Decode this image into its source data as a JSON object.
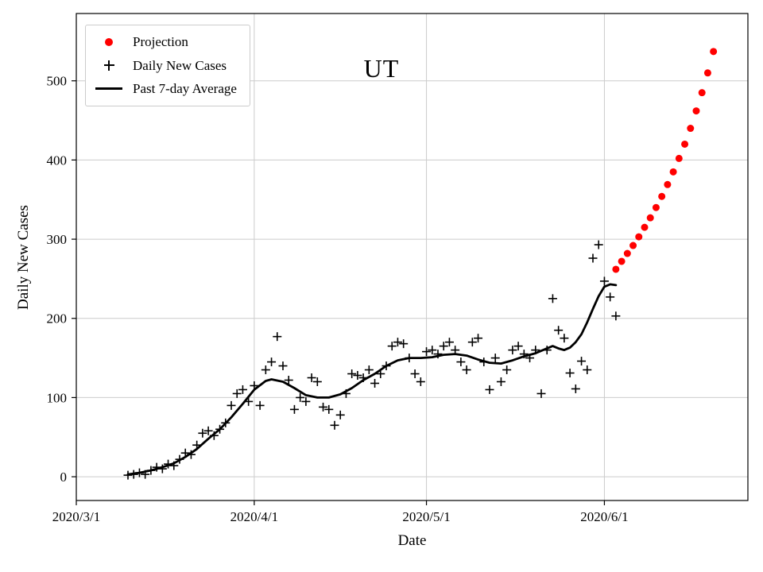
{
  "chart_data": {
    "type": "line",
    "title": "UT",
    "xlabel": "Date",
    "ylabel": "Daily New Cases",
    "x_unit": "days since 2020/3/1",
    "xlim": [
      0,
      117
    ],
    "ylim": [
      -30,
      585
    ],
    "grid": true,
    "legend_position": "upper-left",
    "colors": {
      "projection": "#ff0000",
      "daily": "#000000",
      "average": "#000000",
      "grid": "#cccccc",
      "spine": "#000000"
    },
    "x_ticks": [
      {
        "x": 0,
        "label": "2020/3/1"
      },
      {
        "x": 31,
        "label": "2020/4/1"
      },
      {
        "x": 61,
        "label": "2020/5/1"
      },
      {
        "x": 92,
        "label": "2020/6/1"
      }
    ],
    "y_ticks": [
      {
        "y": 0,
        "label": "0"
      },
      {
        "y": 100,
        "label": "100"
      },
      {
        "y": 200,
        "label": "200"
      },
      {
        "y": 300,
        "label": "300"
      },
      {
        "y": 400,
        "label": "400"
      },
      {
        "y": 500,
        "label": "500"
      }
    ],
    "series": {
      "projection": {
        "name": "Projection",
        "marker": "red-dot",
        "points": [
          [
            94,
            262
          ],
          [
            95,
            272
          ],
          [
            96,
            282
          ],
          [
            97,
            292
          ],
          [
            98,
            303
          ],
          [
            99,
            315
          ],
          [
            100,
            327
          ],
          [
            101,
            340
          ],
          [
            102,
            354
          ],
          [
            103,
            369
          ],
          [
            104,
            385
          ],
          [
            105,
            402
          ],
          [
            106,
            420
          ],
          [
            107,
            440
          ],
          [
            108,
            462
          ],
          [
            109,
            485
          ],
          [
            110,
            510
          ],
          [
            111,
            537
          ]
        ]
      },
      "daily": {
        "name": "Daily New Cases",
        "marker": "black-plus",
        "points": [
          [
            9,
            2
          ],
          [
            10,
            3
          ],
          [
            11,
            5
          ],
          [
            12,
            3
          ],
          [
            13,
            8
          ],
          [
            14,
            12
          ],
          [
            15,
            10
          ],
          [
            16,
            16
          ],
          [
            17,
            14
          ],
          [
            18,
            22
          ],
          [
            19,
            30
          ],
          [
            20,
            28
          ],
          [
            21,
            40
          ],
          [
            22,
            55
          ],
          [
            23,
            58
          ],
          [
            24,
            52
          ],
          [
            25,
            60
          ],
          [
            26,
            68
          ],
          [
            27,
            90
          ],
          [
            28,
            105
          ],
          [
            29,
            110
          ],
          [
            30,
            95
          ],
          [
            31,
            115
          ],
          [
            32,
            90
          ],
          [
            33,
            135
          ],
          [
            34,
            145
          ],
          [
            35,
            177
          ],
          [
            36,
            140
          ],
          [
            37,
            122
          ],
          [
            38,
            85
          ],
          [
            39,
            100
          ],
          [
            40,
            95
          ],
          [
            41,
            125
          ],
          [
            42,
            120
          ],
          [
            43,
            88
          ],
          [
            44,
            85
          ],
          [
            45,
            65
          ],
          [
            46,
            78
          ],
          [
            47,
            105
          ],
          [
            48,
            130
          ],
          [
            49,
            128
          ],
          [
            50,
            125
          ],
          [
            51,
            135
          ],
          [
            52,
            118
          ],
          [
            53,
            130
          ],
          [
            54,
            140
          ],
          [
            55,
            165
          ],
          [
            56,
            170
          ],
          [
            57,
            168
          ],
          [
            58,
            150
          ],
          [
            59,
            130
          ],
          [
            60,
            120
          ],
          [
            61,
            158
          ],
          [
            62,
            160
          ],
          [
            63,
            155
          ],
          [
            64,
            165
          ],
          [
            65,
            170
          ],
          [
            66,
            160
          ],
          [
            67,
            145
          ],
          [
            68,
            135
          ],
          [
            69,
            170
          ],
          [
            70,
            175
          ],
          [
            71,
            145
          ],
          [
            72,
            110
          ],
          [
            73,
            150
          ],
          [
            74,
            120
          ],
          [
            75,
            135
          ],
          [
            76,
            160
          ],
          [
            77,
            165
          ],
          [
            78,
            155
          ],
          [
            79,
            150
          ],
          [
            80,
            160
          ],
          [
            81,
            105
          ],
          [
            82,
            160
          ],
          [
            83,
            225
          ],
          [
            84,
            185
          ],
          [
            85,
            175
          ],
          [
            86,
            131
          ],
          [
            87,
            111
          ],
          [
            88,
            146
          ],
          [
            89,
            135
          ],
          [
            90,
            276
          ],
          [
            91,
            293
          ],
          [
            92,
            247
          ],
          [
            93,
            227
          ],
          [
            94,
            203
          ]
        ]
      },
      "average": {
        "name": "Past 7-day Average",
        "marker": "black-line",
        "points": [
          [
            9,
            3
          ],
          [
            11,
            5
          ],
          [
            13,
            8
          ],
          [
            15,
            12
          ],
          [
            17,
            17
          ],
          [
            19,
            25
          ],
          [
            21,
            35
          ],
          [
            23,
            48
          ],
          [
            25,
            60
          ],
          [
            27,
            75
          ],
          [
            29,
            92
          ],
          [
            31,
            110
          ],
          [
            33,
            121
          ],
          [
            34,
            123
          ],
          [
            36,
            120
          ],
          [
            38,
            112
          ],
          [
            40,
            103
          ],
          [
            42,
            100
          ],
          [
            44,
            100
          ],
          [
            46,
            104
          ],
          [
            48,
            112
          ],
          [
            50,
            122
          ],
          [
            52,
            130
          ],
          [
            54,
            140
          ],
          [
            56,
            147
          ],
          [
            58,
            150
          ],
          [
            60,
            150
          ],
          [
            62,
            151
          ],
          [
            64,
            154
          ],
          [
            66,
            155
          ],
          [
            68,
            153
          ],
          [
            70,
            148
          ],
          [
            72,
            144
          ],
          [
            74,
            143
          ],
          [
            76,
            147
          ],
          [
            78,
            152
          ],
          [
            80,
            156
          ],
          [
            82,
            162
          ],
          [
            83,
            165
          ],
          [
            84,
            162
          ],
          [
            85,
            160
          ],
          [
            86,
            163
          ],
          [
            87,
            170
          ],
          [
            88,
            180
          ],
          [
            89,
            195
          ],
          [
            90,
            212
          ],
          [
            91,
            228
          ],
          [
            92,
            240
          ],
          [
            93,
            243
          ],
          [
            94,
            242
          ]
        ]
      }
    }
  }
}
